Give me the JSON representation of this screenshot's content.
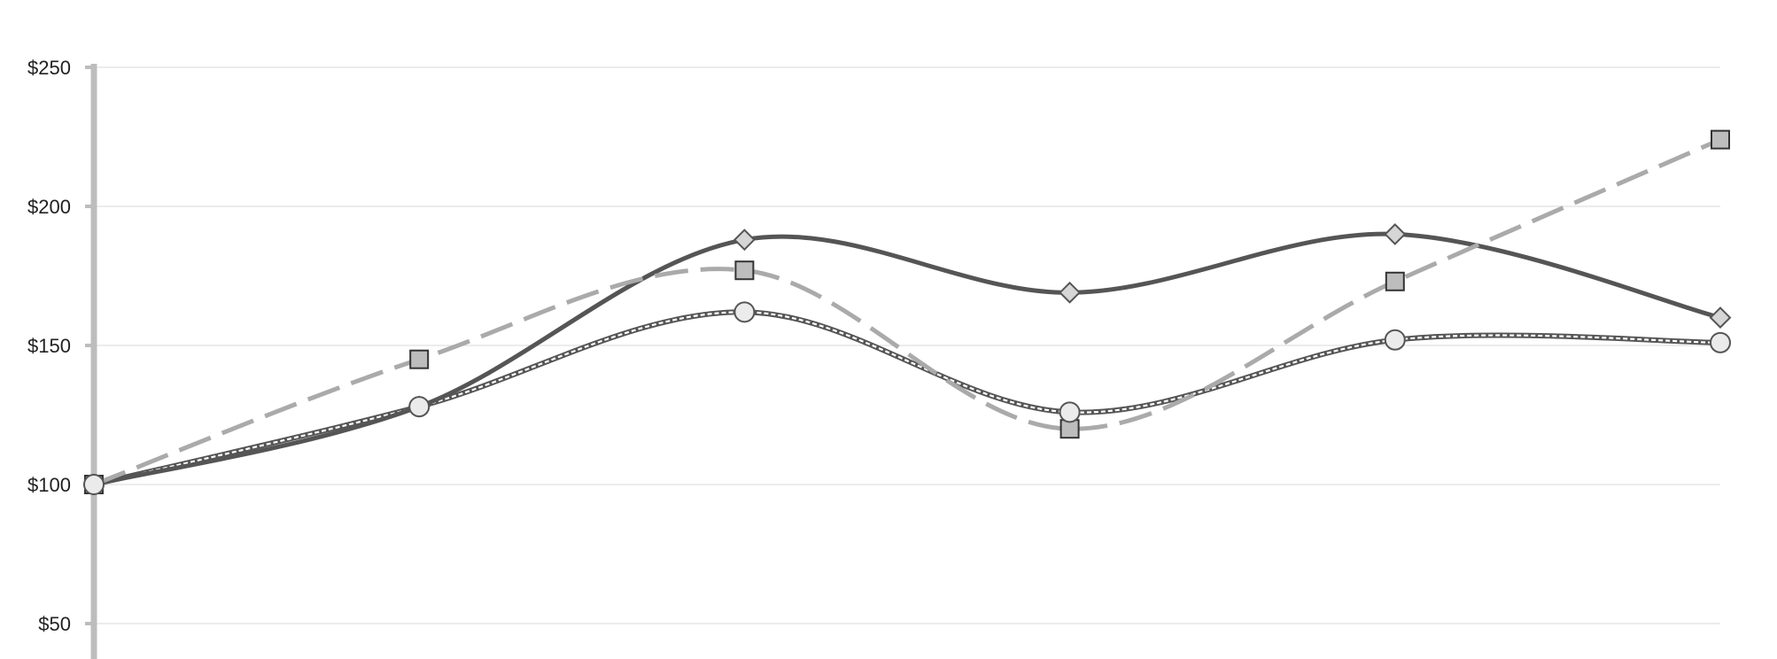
{
  "chart_data": {
    "type": "line",
    "title": "",
    "xlabel": "",
    "ylabel": "",
    "ylim": [
      0,
      250
    ],
    "y_ticks": [
      {
        "value": 50,
        "label": "$50"
      },
      {
        "value": 100,
        "label": "$100"
      },
      {
        "value": 150,
        "label": "$150"
      },
      {
        "value": 200,
        "label": "$200"
      },
      {
        "value": 250,
        "label": "$250"
      }
    ],
    "x": [
      0,
      1,
      2,
      3,
      4,
      5
    ],
    "grid": true,
    "legend": "none",
    "series": [
      {
        "values": [
          100,
          128,
          188,
          169,
          190,
          160
        ],
        "marker": "diamond",
        "line_style": "solid",
        "smooth": true,
        "color": "#555555",
        "marker_fill": "#d6d6d6"
      },
      {
        "values": [
          100,
          145,
          177,
          120,
          173,
          224
        ],
        "marker": "square",
        "line_style": "long-dash",
        "smooth": true,
        "color": "#aaaaaa",
        "marker_fill": "#bdbdbd"
      },
      {
        "values": [
          100,
          128,
          162,
          126,
          152,
          151
        ],
        "marker": "circle",
        "line_style": "double-dotted",
        "smooth": true,
        "color": "#666666",
        "marker_fill": "#ebebeb"
      }
    ]
  }
}
